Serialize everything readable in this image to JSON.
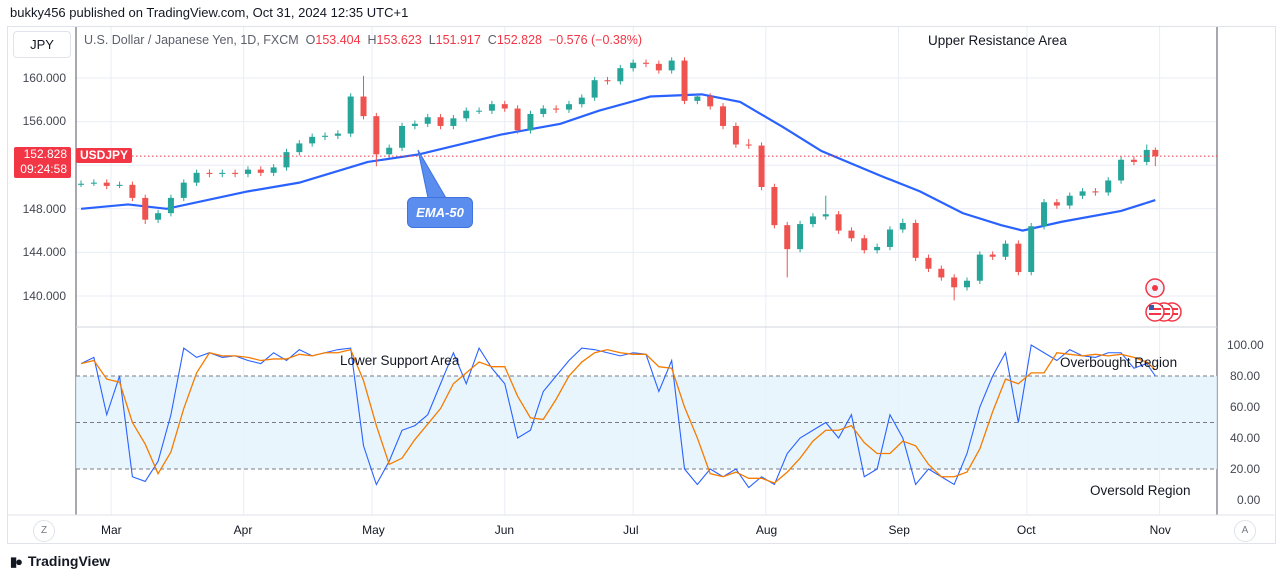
{
  "header": {
    "publisher": "bukky456 published on TradingView.com, Oct 31, 2024 12:35 UTC+1"
  },
  "toolbar": {
    "currency_button": "JPY",
    "zoom_button": "Z",
    "auto_button": "A"
  },
  "legend": {
    "title": "U.S. Dollar / Japanese Yen, 1D, FXCM",
    "o_label": "O",
    "o": "153.404",
    "h_label": "H",
    "h": "153.623",
    "l_label": "L",
    "l": "151.917",
    "c_label": "C",
    "c": "152.828",
    "change": "−0.576 (−0.38%)"
  },
  "price_tag": {
    "price": "152.828",
    "countdown": "09:24:58",
    "symbol": "USDJPY"
  },
  "annotations": {
    "upper": "Upper Resistance Area",
    "lower": "Lower Support Area",
    "overbought": "Overbought Region",
    "oversold": "Oversold Region",
    "ema": "EMA-50"
  },
  "footer": {
    "brand": "TradingView"
  },
  "colors": {
    "up": "#26a69a",
    "down": "#ef5350",
    "ema": "#2962ff",
    "k": "#2962ff",
    "d": "#f57c00",
    "band": "#e3f2fd",
    "accent": "#f23645"
  },
  "icons": [
    "event-dot-icon",
    "us-flag-icon"
  ],
  "chart_data": [
    {
      "type": "candlestick",
      "ylim": [
        138,
        162
      ],
      "yticks": [
        "160.000",
        "156.000",
        "152.000",
        "148.000",
        "144.000",
        "140.000"
      ],
      "xticks": [
        "Mar",
        "Apr",
        "May",
        "Jun",
        "Jul",
        "Aug",
        "Sep",
        "Oct",
        "Nov"
      ],
      "grid": true,
      "columns": [
        "date",
        "open",
        "high",
        "low",
        "close"
      ],
      "candles": [
        [
          "02-23",
          150.2,
          150.6,
          150.0,
          150.3
        ],
        [
          "02-26",
          150.3,
          150.7,
          150.1,
          150.4
        ],
        [
          "02-29",
          150.4,
          150.7,
          149.8,
          150.1
        ],
        [
          "03-03",
          150.1,
          150.5,
          149.9,
          150.2
        ],
        [
          "03-06",
          150.2,
          150.5,
          148.7,
          149.0
        ],
        [
          "03-09",
          149.0,
          149.3,
          146.6,
          147.0
        ],
        [
          "03-12",
          147.0,
          147.9,
          146.7,
          147.6
        ],
        [
          "03-15",
          147.6,
          149.3,
          147.3,
          149.0
        ],
        [
          "03-18",
          149.0,
          150.7,
          148.7,
          150.4
        ],
        [
          "03-21",
          150.4,
          151.6,
          150.1,
          151.3
        ],
        [
          "03-24",
          151.3,
          151.6,
          150.9,
          151.2
        ],
        [
          "03-27",
          151.2,
          151.6,
          150.9,
          151.3
        ],
        [
          "03-30",
          151.3,
          151.6,
          150.9,
          151.2
        ],
        [
          "04-02",
          151.2,
          151.9,
          150.9,
          151.6
        ],
        [
          "04-05",
          151.6,
          151.9,
          151.0,
          151.3
        ],
        [
          "04-08",
          151.3,
          152.1,
          151.0,
          151.8
        ],
        [
          "04-11",
          151.8,
          153.5,
          151.5,
          153.2
        ],
        [
          "04-14",
          153.2,
          154.3,
          152.9,
          154.0
        ],
        [
          "04-17",
          154.0,
          154.9,
          153.7,
          154.6
        ],
        [
          "04-20",
          154.6,
          155.0,
          154.3,
          154.7
        ],
        [
          "04-23",
          154.7,
          155.2,
          154.4,
          154.9
        ],
        [
          "04-26",
          154.9,
          158.6,
          154.6,
          158.3
        ],
        [
          "04-29",
          158.3,
          160.2,
          156.2,
          156.5
        ],
        [
          "05-02",
          156.5,
          156.8,
          151.9,
          153.0
        ],
        [
          "05-05",
          153.0,
          153.9,
          152.7,
          153.6
        ],
        [
          "05-08",
          153.6,
          155.9,
          153.3,
          155.6
        ],
        [
          "05-11",
          155.6,
          156.1,
          155.3,
          155.8
        ],
        [
          "05-14",
          155.8,
          156.7,
          155.5,
          156.4
        ],
        [
          "05-17",
          156.4,
          156.7,
          155.3,
          155.6
        ],
        [
          "05-20",
          155.6,
          156.6,
          155.3,
          156.3
        ],
        [
          "05-23",
          156.3,
          157.3,
          156.0,
          157.0
        ],
        [
          "05-26",
          157.0,
          157.3,
          156.7,
          157.0
        ],
        [
          "05-29",
          157.0,
          157.9,
          156.7,
          157.6
        ],
        [
          "06-01",
          157.6,
          157.9,
          156.9,
          157.2
        ],
        [
          "06-04",
          157.2,
          157.5,
          154.9,
          155.2
        ],
        [
          "06-07",
          155.2,
          157.0,
          154.9,
          156.7
        ],
        [
          "06-10",
          156.7,
          157.5,
          156.4,
          157.2
        ],
        [
          "06-13",
          157.2,
          157.5,
          156.8,
          157.1
        ],
        [
          "06-16",
          157.1,
          157.9,
          156.8,
          157.6
        ],
        [
          "06-19",
          157.6,
          158.5,
          157.3,
          158.2
        ],
        [
          "06-22",
          158.2,
          160.1,
          157.9,
          159.8
        ],
        [
          "06-25",
          159.8,
          160.1,
          159.4,
          159.7
        ],
        [
          "06-28",
          159.7,
          161.2,
          159.4,
          160.9
        ],
        [
          "07-01",
          160.9,
          161.7,
          160.6,
          161.4
        ],
        [
          "07-04",
          161.4,
          161.7,
          161.0,
          161.3
        ],
        [
          "07-07",
          161.3,
          161.6,
          160.4,
          160.7
        ],
        [
          "07-10",
          160.7,
          161.9,
          160.4,
          161.6
        ],
        [
          "07-13",
          161.6,
          161.9,
          157.6,
          157.9
        ],
        [
          "07-16",
          157.9,
          158.6,
          157.6,
          158.3
        ],
        [
          "07-19",
          158.3,
          158.6,
          157.1,
          157.4
        ],
        [
          "07-22",
          157.4,
          157.7,
          155.3,
          155.6
        ],
        [
          "07-25",
          155.6,
          155.9,
          153.6,
          153.9
        ],
        [
          "07-28",
          153.9,
          154.4,
          153.5,
          153.8
        ],
        [
          "07-31",
          153.8,
          154.1,
          149.7,
          150.0
        ],
        [
          "08-03",
          150.0,
          150.3,
          146.2,
          146.5
        ],
        [
          "08-06",
          146.5,
          146.8,
          141.7,
          144.3
        ],
        [
          "08-09",
          144.3,
          146.9,
          144.0,
          146.6
        ],
        [
          "08-12",
          146.6,
          147.6,
          146.3,
          147.3
        ],
        [
          "08-15",
          147.3,
          149.2,
          147.0,
          147.5
        ],
        [
          "08-18",
          147.5,
          147.8,
          145.7,
          146.0
        ],
        [
          "08-21",
          146.0,
          146.3,
          145.0,
          145.3
        ],
        [
          "08-24",
          145.3,
          145.6,
          143.9,
          144.2
        ],
        [
          "08-27",
          144.2,
          144.8,
          143.9,
          144.5
        ],
        [
          "08-30",
          144.5,
          146.4,
          144.2,
          146.1
        ],
        [
          "09-02",
          146.1,
          147.1,
          145.8,
          146.7
        ],
        [
          "09-05",
          146.7,
          147.0,
          143.2,
          143.5
        ],
        [
          "09-08",
          143.5,
          143.8,
          142.2,
          142.5
        ],
        [
          "09-11",
          142.5,
          142.8,
          141.4,
          141.7
        ],
        [
          "09-14",
          141.7,
          142.0,
          139.6,
          140.8
        ],
        [
          "09-17",
          140.8,
          141.7,
          140.5,
          141.4
        ],
        [
          "09-20",
          141.4,
          144.1,
          141.1,
          143.8
        ],
        [
          "09-23",
          143.8,
          144.1,
          143.3,
          143.6
        ],
        [
          "09-26",
          143.6,
          145.1,
          143.3,
          144.8
        ],
        [
          "09-29",
          144.8,
          145.1,
          141.9,
          142.2
        ],
        [
          "10-02",
          142.2,
          146.7,
          141.9,
          146.4
        ],
        [
          "10-05",
          146.4,
          148.9,
          146.1,
          148.6
        ],
        [
          "10-08",
          148.6,
          148.9,
          148.0,
          148.3
        ],
        [
          "10-11",
          148.3,
          149.5,
          148.0,
          149.2
        ],
        [
          "10-14",
          149.2,
          149.9,
          148.9,
          149.6
        ],
        [
          "10-17",
          149.6,
          149.9,
          149.2,
          149.5
        ],
        [
          "10-20",
          149.5,
          150.9,
          149.2,
          150.6
        ],
        [
          "10-23",
          150.6,
          152.8,
          150.3,
          152.5
        ],
        [
          "10-26",
          152.5,
          152.8,
          152.0,
          152.3
        ],
        [
          "10-29",
          152.3,
          153.9,
          152.0,
          153.4
        ],
        [
          "10-31",
          153.404,
          153.623,
          151.917,
          152.828
        ]
      ],
      "ema50": [
        [
          "02-23",
          148.0
        ],
        [
          "03-05",
          148.4
        ],
        [
          "03-14",
          148.0
        ],
        [
          "04-02",
          149.6
        ],
        [
          "04-14",
          150.4
        ],
        [
          "04-30",
          152.3
        ],
        [
          "05-12",
          153.0
        ],
        [
          "05-31",
          154.8
        ],
        [
          "06-14",
          155.8
        ],
        [
          "06-23",
          157.0
        ],
        [
          "07-05",
          158.3
        ],
        [
          "07-17",
          158.5
        ],
        [
          "07-26",
          157.8
        ],
        [
          "08-05",
          155.5
        ],
        [
          "08-14",
          153.3
        ],
        [
          "08-28",
          151.0
        ],
        [
          "09-06",
          149.6
        ],
        [
          "09-16",
          147.6
        ],
        [
          "09-25",
          146.5
        ],
        [
          "09-30",
          146.0
        ],
        [
          "10-09",
          146.8
        ],
        [
          "10-23",
          147.8
        ],
        [
          "10-31",
          148.8
        ]
      ]
    },
    {
      "type": "line",
      "ylim": [
        -5,
        105
      ],
      "yticks": [
        "100.00",
        "80.00",
        "60.00",
        "40.00",
        "20.00",
        "0.00"
      ],
      "band": [
        20,
        80
      ],
      "levels": [
        80,
        50,
        20
      ],
      "k": [
        88,
        92,
        55,
        80,
        15,
        12,
        25,
        55,
        98,
        92,
        95,
        92,
        93,
        90,
        88,
        95,
        90,
        97,
        93,
        95,
        97,
        98,
        35,
        10,
        25,
        45,
        48,
        55,
        75,
        95,
        75,
        98,
        85,
        75,
        40,
        45,
        70,
        80,
        90,
        98,
        97,
        95,
        93,
        95,
        94,
        70,
        90,
        20,
        10,
        20,
        15,
        20,
        8,
        15,
        10,
        30,
        40,
        45,
        50,
        40,
        55,
        15,
        20,
        55,
        40,
        10,
        20,
        15,
        10,
        30,
        60,
        80,
        95,
        50,
        100,
        95,
        90,
        97,
        93,
        92,
        95,
        95,
        85,
        88,
        80
      ],
      "d": [
        88,
        90,
        78,
        76,
        50,
        36,
        17,
        31,
        59,
        82,
        95,
        93,
        93,
        92,
        90,
        91,
        91,
        94,
        93,
        95,
        95,
        97,
        77,
        48,
        23,
        27,
        39,
        49,
        59,
        75,
        82,
        89,
        86,
        86,
        67,
        53,
        52,
        65,
        80,
        89,
        95,
        97,
        95,
        94,
        94,
        86,
        85,
        60,
        40,
        17,
        15,
        18,
        14,
        14,
        11,
        18,
        27,
        38,
        45,
        45,
        48,
        37,
        30,
        30,
        38,
        35,
        23,
        15,
        15,
        18,
        33,
        57,
        78,
        75,
        82,
        82,
        95,
        94,
        93,
        94,
        93,
        94,
        92,
        89,
        84
      ]
    }
  ]
}
